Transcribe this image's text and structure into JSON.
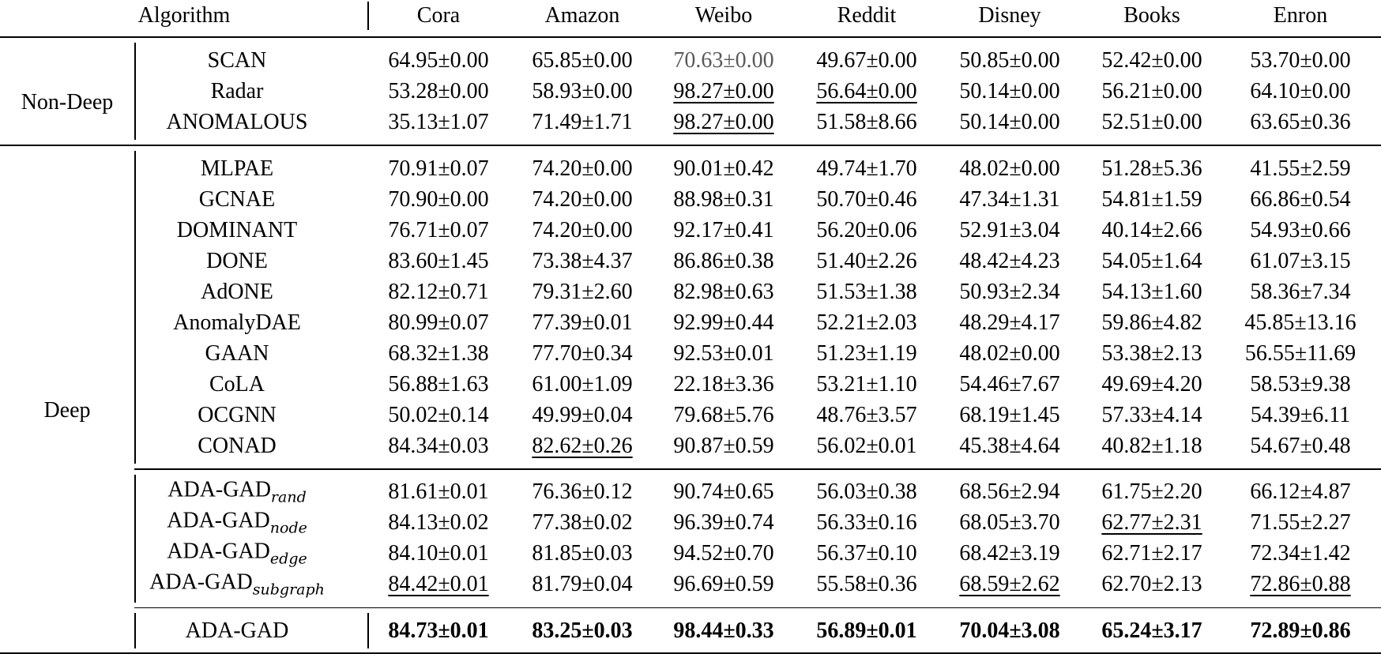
{
  "header": [
    "Algorithm",
    "Cora",
    "Amazon",
    "Weibo",
    "Reddit",
    "Disney",
    "Books",
    "Enron"
  ],
  "groups": [
    {
      "label": "Non-Deep",
      "blocks": [
        {
          "rows": [
            {
              "name": "SCAN",
              "cells": [
                "64.95±0.00",
                "65.85±0.00",
                {
                  "text": "70.63±0.00",
                  "color": "#5a5a5a"
                },
                "49.67±0.00",
                "50.85±0.00",
                "52.42±0.00",
                "53.70±0.00"
              ]
            },
            {
              "name": "Radar",
              "cells": [
                "53.28±0.00",
                "58.93±0.00",
                {
                  "text": "98.27±0.00",
                  "underline": true
                },
                {
                  "text": "56.64±0.00",
                  "underline": true
                },
                "50.14±0.00",
                "56.21±0.00",
                "64.10±0.00"
              ]
            },
            {
              "name": "ANOMALOUS",
              "cells": [
                "35.13±1.07",
                "71.49±1.71",
                {
                  "text": "98.27±0.00",
                  "underline": true
                },
                "51.58±8.66",
                "50.14±0.00",
                "52.51±0.00",
                "63.65±0.36"
              ]
            }
          ]
        }
      ]
    },
    {
      "label": "Deep",
      "blocks": [
        {
          "rows": [
            {
              "name": "MLPAE",
              "cells": [
                "70.91±0.07",
                "74.20±0.00",
                "90.01±0.42",
                "49.74±1.70",
                "48.02±0.00",
                "51.28±5.36",
                "41.55±2.59"
              ]
            },
            {
              "name": "GCNAE",
              "cells": [
                "70.90±0.00",
                "74.20±0.00",
                "88.98±0.31",
                "50.70±0.46",
                "47.34±1.31",
                "54.81±1.59",
                "66.86±0.54"
              ]
            },
            {
              "name": "DOMINANT",
              "cells": [
                "76.71±0.07",
                "74.20±0.00",
                "92.17±0.41",
                "56.20±0.06",
                "52.91±3.04",
                "40.14±2.66",
                "54.93±0.66"
              ]
            },
            {
              "name": "DONE",
              "cells": [
                "83.60±1.45",
                "73.38±4.37",
                "86.86±0.38",
                "51.40±2.26",
                "48.42±4.23",
                "54.05±1.64",
                "61.07±3.15"
              ]
            },
            {
              "name": "AdONE",
              "cells": [
                "82.12±0.71",
                "79.31±2.60",
                "82.98±0.63",
                "51.53±1.38",
                "50.93±2.34",
                "54.13±1.60",
                "58.36±7.34"
              ]
            },
            {
              "name": "AnomalyDAE",
              "cells": [
                "80.99±0.07",
                "77.39±0.01",
                "92.99±0.44",
                "52.21±2.03",
                "48.29±4.17",
                "59.86±4.82",
                "45.85±13.16"
              ]
            },
            {
              "name": "GAAN",
              "cells": [
                "68.32±1.38",
                "77.70±0.34",
                "92.53±0.01",
                "51.23±1.19",
                "48.02±0.00",
                "53.38±2.13",
                "56.55±11.69"
              ]
            },
            {
              "name": "CoLA",
              "cells": [
                "56.88±1.63",
                "61.00±1.09",
                "22.18±3.36",
                "53.21±1.10",
                "54.46±7.67",
                "49.69±4.20",
                "58.53±9.38"
              ]
            },
            {
              "name": "OCGNN",
              "cells": [
                "50.02±0.14",
                "49.99±0.04",
                "79.68±5.76",
                "48.76±3.57",
                "68.19±1.45",
                "57.33±4.14",
                "54.39±6.11"
              ]
            },
            {
              "name": "CONAD",
              "cells": [
                "84.34±0.03",
                {
                  "text": "82.62±0.26",
                  "underline": true
                },
                "90.87±0.59",
                "56.02±0.01",
                "45.38±4.64",
                "40.82±1.18",
                "54.67±0.48"
              ]
            }
          ]
        },
        {
          "rows": [
            {
              "name": "ADA-GAD",
              "sub": "rand",
              "cells": [
                "81.61±0.01",
                "76.36±0.12",
                "90.74±0.65",
                "56.03±0.38",
                "68.56±2.94",
                "61.75±2.20",
                "66.12±4.87"
              ]
            },
            {
              "name": "ADA-GAD",
              "sub": "node",
              "cells": [
                "84.13±0.02",
                "77.38±0.02",
                "96.39±0.74",
                "56.33±0.16",
                "68.05±3.70",
                {
                  "text": "62.77±2.31",
                  "underline": true
                },
                "71.55±2.27"
              ]
            },
            {
              "name": "ADA-GAD",
              "sub": "edge",
              "cells": [
                "84.10±0.01",
                "81.85±0.03",
                "94.52±0.70",
                "56.37±0.10",
                "68.42±3.19",
                "62.71±2.17",
                "72.34±1.42"
              ]
            },
            {
              "name": "ADA-GAD",
              "sub": "subgraph",
              "cells": [
                {
                  "text": "84.42±0.01",
                  "underline": true
                },
                "81.79±0.04",
                "96.69±0.59",
                "55.58±0.36",
                {
                  "text": "68.59±2.62",
                  "underline": true
                },
                "62.70±2.13",
                {
                  "text": "72.86±0.88",
                  "underline": true
                }
              ]
            }
          ]
        },
        {
          "bold": true,
          "rows": [
            {
              "name": "ADA-GAD",
              "cells": [
                "84.73±0.01",
                "83.25±0.03",
                "98.44±0.33",
                "56.89±0.01",
                "70.04±3.08",
                "65.24±3.17",
                "72.89±0.86"
              ]
            }
          ]
        }
      ]
    }
  ]
}
